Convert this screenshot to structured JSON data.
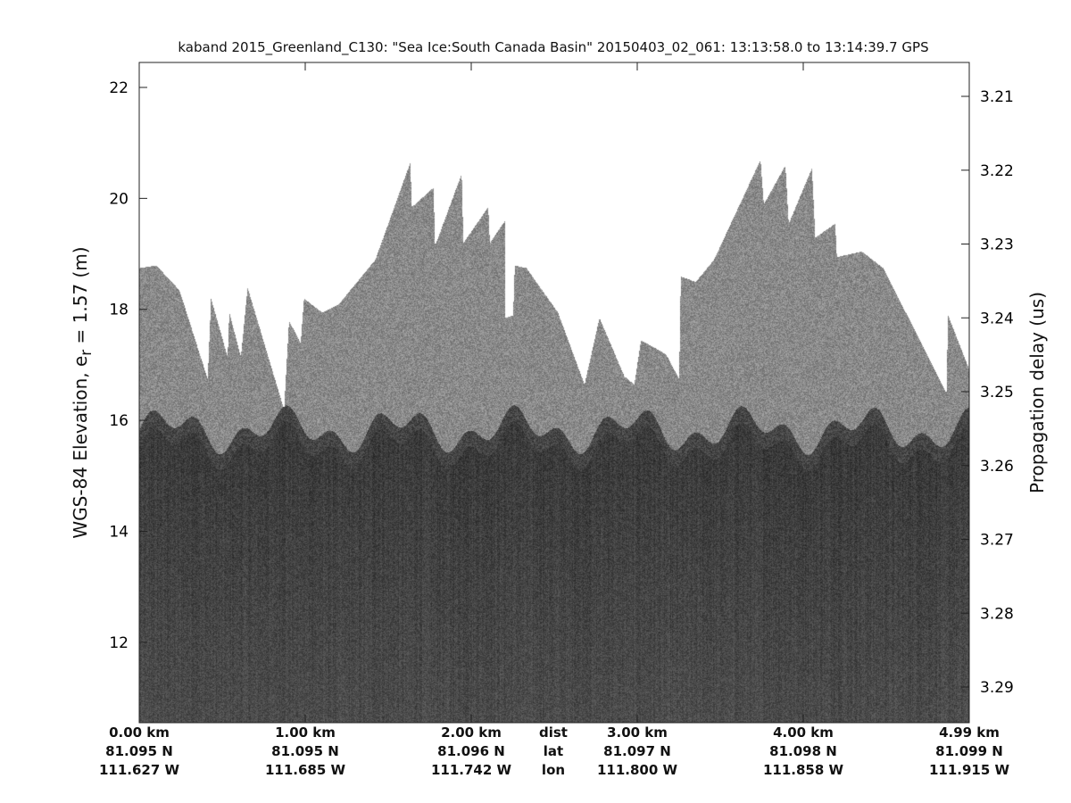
{
  "chart_data": {
    "type": "heatmap",
    "title": "kaband 2015_Greenland_C130: \"Sea Ice:South Canada Basin\"  20150403_02_061: 13:13:58.0 to 13:14:39.7 GPS",
    "ylabel_prefix": "WGS-84 Elevation, e",
    "ylabel_sub": "r",
    "ylabel_suffix": " = 1.57 (m)",
    "y2label": "Propagation delay (us)",
    "ylim": [
      10.55,
      22.45
    ],
    "yticks": [
      "12",
      "14",
      "16",
      "18",
      "20",
      "22"
    ],
    "y2ticks": [
      "3.21",
      "3.22",
      "3.23",
      "3.24",
      "3.25",
      "3.26",
      "3.27",
      "3.28",
      "3.29"
    ],
    "xlim_km": [
      0,
      5.0
    ],
    "x_rows": {
      "dist": [
        "0.00 km",
        "1.00 km",
        "2.00 km",
        "3.00 km",
        "4.00 km",
        "4.99 km"
      ],
      "lat": [
        "81.095 N",
        "81.095 N",
        "81.096 N",
        "81.097 N",
        "81.098 N",
        "81.099 N"
      ],
      "lon": [
        "111.627 W",
        "111.685 W",
        "111.742 W",
        "111.800 W",
        "111.858 W",
        "111.915 W"
      ],
      "row_labels": [
        "dist",
        "lat",
        "lon"
      ]
    },
    "colormap": "gray",
    "surface_profile_km_m": [
      [
        0,
        18.75
      ],
      [
        0.1,
        18.8
      ],
      [
        0.24,
        18.35
      ],
      [
        0.41,
        16.75
      ],
      [
        0.43,
        18.2
      ],
      [
        0.53,
        17.15
      ],
      [
        0.54,
        17.95
      ],
      [
        0.61,
        17.15
      ],
      [
        0.65,
        18.4
      ],
      [
        0.87,
        16.2
      ],
      [
        0.9,
        17.8
      ],
      [
        0.97,
        17.4
      ],
      [
        0.99,
        18.2
      ],
      [
        1.1,
        17.95
      ],
      [
        1.2,
        18.1
      ],
      [
        1.42,
        18.9
      ],
      [
        1.63,
        20.65
      ],
      [
        1.64,
        19.85
      ],
      [
        1.77,
        20.2
      ],
      [
        1.78,
        19.15
      ],
      [
        1.94,
        20.45
      ],
      [
        1.95,
        19.2
      ],
      [
        2.1,
        19.85
      ],
      [
        2.11,
        19.2
      ],
      [
        2.2,
        19.6
      ],
      [
        2.2,
        17.85
      ],
      [
        2.25,
        17.9
      ],
      [
        2.26,
        18.8
      ],
      [
        2.33,
        18.75
      ],
      [
        2.52,
        17.95
      ],
      [
        2.68,
        16.65
      ],
      [
        2.77,
        17.85
      ],
      [
        2.92,
        16.8
      ],
      [
        2.98,
        16.65
      ],
      [
        3.02,
        17.45
      ],
      [
        3.17,
        17.2
      ],
      [
        3.25,
        16.75
      ],
      [
        3.26,
        18.6
      ],
      [
        3.35,
        18.5
      ],
      [
        3.46,
        18.9
      ],
      [
        3.74,
        20.7
      ],
      [
        3.76,
        19.9
      ],
      [
        3.89,
        20.6
      ],
      [
        3.91,
        19.55
      ],
      [
        4.05,
        20.55
      ],
      [
        4.07,
        19.3
      ],
      [
        4.19,
        19.55
      ],
      [
        4.2,
        18.95
      ],
      [
        4.35,
        19.05
      ],
      [
        4.48,
        18.75
      ],
      [
        4.86,
        16.5
      ],
      [
        4.87,
        17.9
      ],
      [
        5.0,
        16.9
      ]
    ],
    "subsurface_level_m": 15.7
  }
}
